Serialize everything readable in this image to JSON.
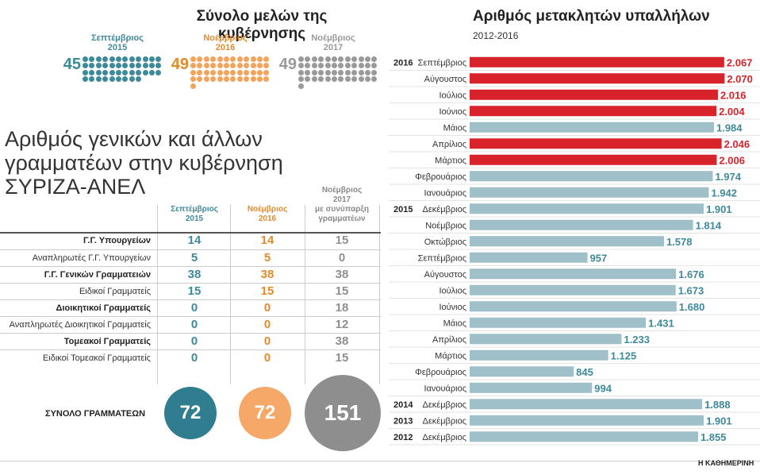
{
  "members": {
    "title": "Σύνολο μελών της κυβέρνησης",
    "groups": [
      {
        "label_line1": "Σεπτέμβριος",
        "label_line2": "2015",
        "count": "45",
        "color": "#3e8a9a"
      },
      {
        "label_line1": "Νοέμβριος",
        "label_line2": "2016",
        "count": "49",
        "color": "#f2a35c"
      },
      {
        "label_line1": "Νοέμβριος",
        "label_line2": "2017",
        "count": "49",
        "color": "#9a9a9a"
      }
    ]
  },
  "secretaries": {
    "title_line1": "Αριθμός γενικών και άλλων",
    "title_line2": "γραμματέων στην κυβέρνηση",
    "title_line3": "ΣΥΡΙΖΑ-ΑΝΕΛ",
    "columns": [
      {
        "line1": "Σεπτέμβριος",
        "line2": "2015",
        "line3": "",
        "line4": ""
      },
      {
        "line1": "Νοέμβριος",
        "line2": "2016",
        "line3": "",
        "line4": ""
      },
      {
        "line1": "Νοέμβριος",
        "line2": "2017",
        "line3": "με συνύπαρξη",
        "line4": "γραμματέων"
      }
    ],
    "rows": [
      {
        "label": "Γ.Γ. Υπουργείων",
        "bold": true,
        "values": [
          "14",
          "14",
          "15"
        ]
      },
      {
        "label": "Αναπληρωτές Γ.Γ. Υπουργείων",
        "bold": false,
        "values": [
          "5",
          "5",
          "0"
        ]
      },
      {
        "label": "Γ.Γ. Γενικών Γραμματειών",
        "bold": true,
        "values": [
          "38",
          "38",
          "38"
        ]
      },
      {
        "label": "Ειδικοί Γραμματείς",
        "bold": false,
        "values": [
          "15",
          "15",
          "15"
        ]
      },
      {
        "label": "Διοικητικοί Γραμματείς",
        "bold": true,
        "values": [
          "0",
          "0",
          "18"
        ]
      },
      {
        "label": "Αναπληρωτές Διοικητικοί Γραμματείς",
        "bold": false,
        "values": [
          "0",
          "0",
          "12"
        ]
      },
      {
        "label": "Τομεακοί Γραμματείς",
        "bold": true,
        "values": [
          "0",
          "0",
          "38"
        ]
      },
      {
        "label": "Ειδικοί Τομεακοί Γραμματείς",
        "bold": false,
        "values": [
          "0",
          "0",
          "15"
        ]
      }
    ],
    "total_label": "ΣΥΝΟΛΟ ΓΡΑΜΜΑΤΕΩΝ",
    "totals": [
      {
        "value": "72",
        "color": "#2f7d8e"
      },
      {
        "value": "72",
        "color": "#f5a868"
      },
      {
        "value": "151",
        "color": "#8e8e8e"
      }
    ]
  },
  "chart_data": {
    "type": "bar",
    "orientation": "horizontal",
    "title": "Αριθμός μετακλητών υπαλλήλων",
    "subtitle": "2012-2016",
    "xlim": [
      0,
      2100
    ],
    "grid": false,
    "colors": {
      "highlight": "#d8232a",
      "normal": "#9fbfc9",
      "label_normal": "#3e8a9a",
      "label_highlight": "#d8232a"
    },
    "bars": [
      {
        "year": "2016",
        "month": "Σεπτέμβριος",
        "value": 2067,
        "label": "2.067",
        "highlight": true
      },
      {
        "year": "",
        "month": "Αύγουστος",
        "value": 2070,
        "label": "2.070",
        "highlight": true
      },
      {
        "year": "",
        "month": "Ιούλιος",
        "value": 2016,
        "label": "2.016",
        "highlight": true
      },
      {
        "year": "",
        "month": "Ιούνιος",
        "value": 2004,
        "label": "2.004",
        "highlight": true
      },
      {
        "year": "",
        "month": "Μάιος",
        "value": 1984,
        "label": "1.984",
        "highlight": false
      },
      {
        "year": "",
        "month": "Απρίλιος",
        "value": 2046,
        "label": "2.046",
        "highlight": true
      },
      {
        "year": "",
        "month": "Μάρτιος",
        "value": 2006,
        "label": "2.006",
        "highlight": true
      },
      {
        "year": "",
        "month": "Φεβρουάριος",
        "value": 1974,
        "label": "1.974",
        "highlight": false
      },
      {
        "year": "",
        "month": "Ιανουάριος",
        "value": 1942,
        "label": "1.942",
        "highlight": false
      },
      {
        "year": "2015",
        "month": "Δεκέμβριος",
        "value": 1901,
        "label": "1.901",
        "highlight": false
      },
      {
        "year": "",
        "month": "Νοέμβριος",
        "value": 1814,
        "label": "1.814",
        "highlight": false
      },
      {
        "year": "",
        "month": "Οκτώβριος",
        "value": 1578,
        "label": "1.578",
        "highlight": false
      },
      {
        "year": "",
        "month": "Σεπτέμβριος",
        "value": 957,
        "label": "957",
        "highlight": false
      },
      {
        "year": "",
        "month": "Αύγουστος",
        "value": 1676,
        "label": "1.676",
        "highlight": false
      },
      {
        "year": "",
        "month": "Ιούλιος",
        "value": 1673,
        "label": "1.673",
        "highlight": false
      },
      {
        "year": "",
        "month": "Ιούνιος",
        "value": 1680,
        "label": "1.680",
        "highlight": false
      },
      {
        "year": "",
        "month": "Μάιος",
        "value": 1431,
        "label": "1.431",
        "highlight": false
      },
      {
        "year": "",
        "month": "Απρίλιος",
        "value": 1233,
        "label": "1.233",
        "highlight": false
      },
      {
        "year": "",
        "month": "Μάρτιος",
        "value": 1125,
        "label": "1.125",
        "highlight": false
      },
      {
        "year": "",
        "month": "Φεβρουάριος",
        "value": 845,
        "label": "845",
        "highlight": false
      },
      {
        "year": "",
        "month": "Ιανουάριος",
        "value": 994,
        "label": "994",
        "highlight": false
      },
      {
        "year": "2014",
        "month": "Δεκέμβριος",
        "value": 1888,
        "label": "1.888",
        "highlight": false
      },
      {
        "year": "2013",
        "month": "Δεκέμβριος",
        "value": 1901,
        "label": "1.901",
        "highlight": false
      },
      {
        "year": "2012",
        "month": "Δεκέμβριος",
        "value": 1855,
        "label": "1.855",
        "highlight": false
      }
    ]
  },
  "source": "Η ΚΑΘΗΜΕΡΙΝΗ"
}
